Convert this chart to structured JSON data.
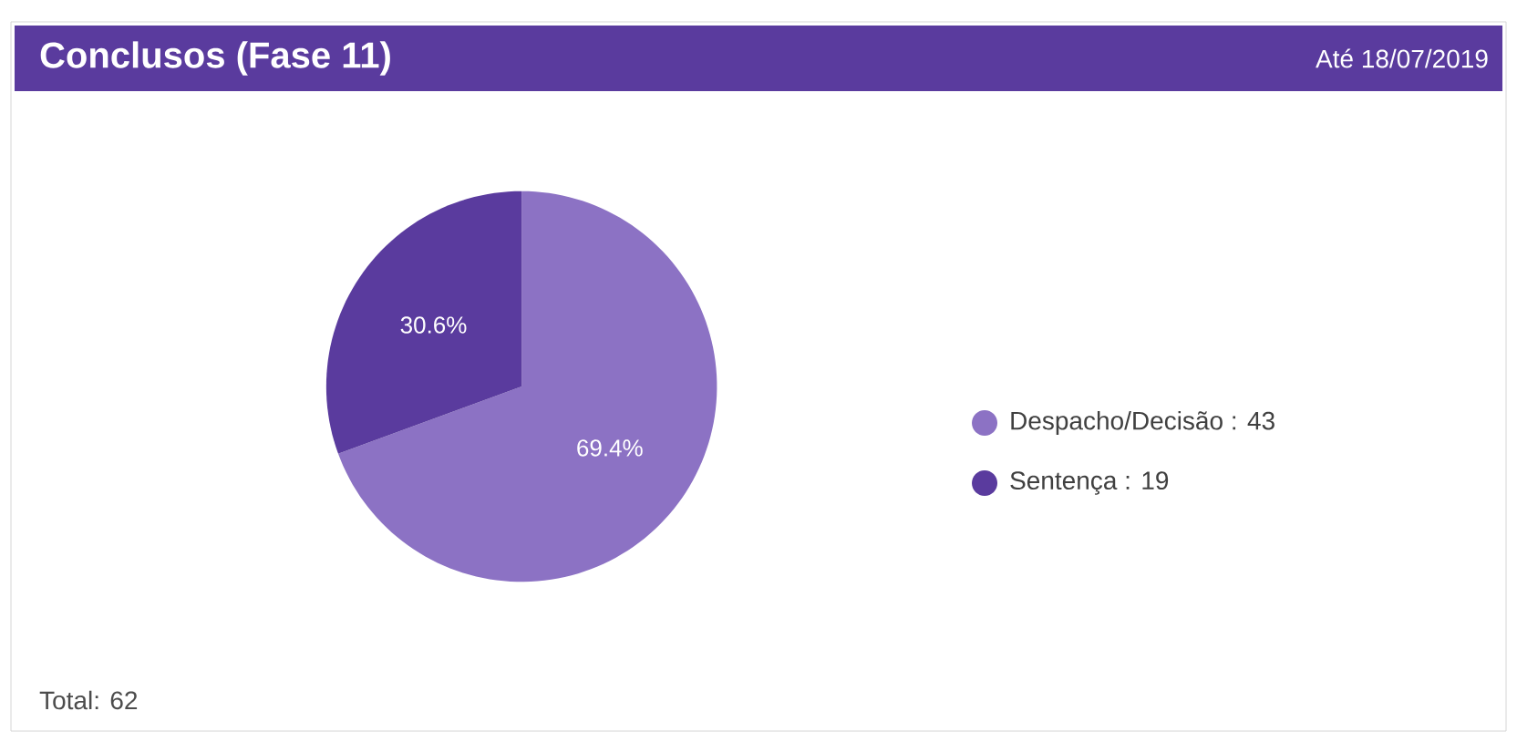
{
  "chart_data": {
    "type": "pie",
    "title": "Conclusos (Fase 11)",
    "subtitle": "Até 18/07/2019",
    "categories": [
      "Despacho/Decisão : 43",
      "Sentença : 19"
    ],
    "values": [
      69.4,
      30.6
    ],
    "colors": [
      "#8c72c4",
      "#5a3b9e"
    ],
    "value_labels": [
      "69.4%",
      "30.6%"
    ],
    "legend": "right",
    "annotations": [
      "Total: 62"
    ]
  }
}
